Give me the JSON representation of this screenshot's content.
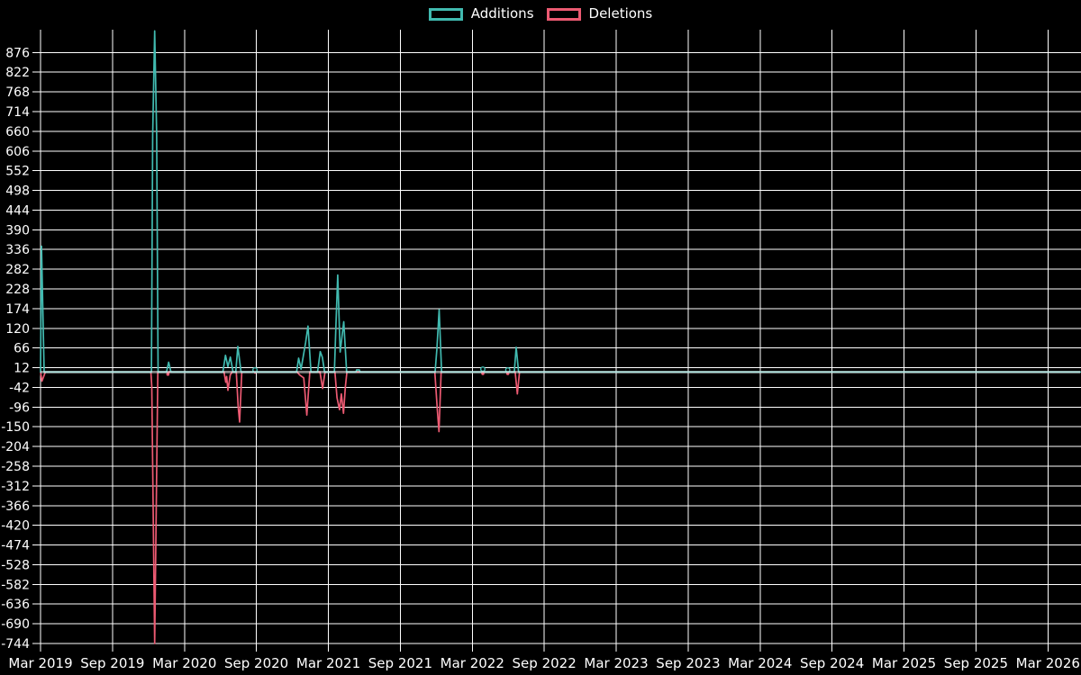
{
  "chart_data": {
    "type": "line",
    "title": "",
    "background": "#000000",
    "grid_color": "#ffffff",
    "zero_line_color": "rgba(255,255,255,0.52)",
    "legend_position": "top-center",
    "x_axis": {
      "unit": "months since 2019-03",
      "tick_step_months": 6,
      "range_months": [
        0,
        86.7
      ],
      "labels": [
        "Mar 2019",
        "Sep 2019",
        "Mar 2020",
        "Sep 2020",
        "Mar 2021",
        "Sep 2021",
        "Mar 2022",
        "Sep 2022",
        "Mar 2023",
        "Sep 2023",
        "Mar 2024",
        "Sep 2024",
        "Mar 2025",
        "Sep 2025",
        "Mar 2026"
      ]
    },
    "y_axis": {
      "min": -744,
      "max": 876,
      "step": 54,
      "ticks": [
        876,
        822,
        768,
        714,
        660,
        606,
        552,
        498,
        444,
        390,
        336,
        282,
        228,
        174,
        120,
        66,
        12,
        -42,
        -96,
        -150,
        -204,
        -258,
        -312,
        -366,
        -420,
        -474,
        -528,
        -582,
        -636,
        -690,
        -744
      ]
    },
    "series": [
      {
        "name": "Additions",
        "color": "#41bab0",
        "points": [
          [
            0,
            0
          ],
          [
            0.08,
            345
          ],
          [
            0.3,
            0
          ],
          [
            9.25,
            0
          ],
          [
            9.35,
            650
          ],
          [
            9.52,
            935
          ],
          [
            9.68,
            650
          ],
          [
            9.8,
            0
          ],
          [
            10.5,
            0
          ],
          [
            10.68,
            27
          ],
          [
            10.88,
            0
          ],
          [
            15.2,
            0
          ],
          [
            15.42,
            46
          ],
          [
            15.62,
            15
          ],
          [
            15.83,
            41
          ],
          [
            16.05,
            0
          ],
          [
            16.28,
            0
          ],
          [
            16.45,
            70
          ],
          [
            16.72,
            0
          ],
          [
            17.8,
            0
          ],
          [
            17.88,
            6
          ],
          [
            17.96,
            0
          ],
          [
            21.35,
            0
          ],
          [
            21.52,
            38
          ],
          [
            21.72,
            8
          ],
          [
            22.1,
            80
          ],
          [
            22.3,
            126
          ],
          [
            22.55,
            0
          ],
          [
            23.1,
            0
          ],
          [
            23.32,
            56
          ],
          [
            23.5,
            40
          ],
          [
            23.68,
            0
          ],
          [
            24.5,
            0
          ],
          [
            24.62,
            120
          ],
          [
            24.78,
            266
          ],
          [
            24.98,
            55
          ],
          [
            25.28,
            138
          ],
          [
            25.52,
            0
          ],
          [
            26.3,
            0
          ],
          [
            26.36,
            6
          ],
          [
            26.58,
            6
          ],
          [
            26.64,
            0
          ],
          [
            32.9,
            0
          ],
          [
            33.05,
            64
          ],
          [
            33.24,
            171
          ],
          [
            33.44,
            0
          ],
          [
            36.8,
            0
          ],
          [
            36.88,
            8
          ],
          [
            36.96,
            0
          ],
          [
            38.88,
            0
          ],
          [
            38.96,
            6
          ],
          [
            39.04,
            0
          ],
          [
            39.5,
            0
          ],
          [
            39.66,
            68
          ],
          [
            39.86,
            0
          ],
          [
            86.7,
            0
          ]
        ],
        "markers": [
          [
            17.88,
            6
          ],
          [
            36.88,
            8
          ],
          [
            38.96,
            6
          ]
        ]
      },
      {
        "name": "Deletions",
        "color": "#ec5a72",
        "points": [
          [
            0,
            0
          ],
          [
            0.12,
            -25
          ],
          [
            0.4,
            0
          ],
          [
            9.2,
            0
          ],
          [
            9.28,
            -40
          ],
          [
            9.52,
            -744
          ],
          [
            9.78,
            0
          ],
          [
            10.55,
            0
          ],
          [
            10.62,
            -6
          ],
          [
            10.72,
            0
          ],
          [
            15.3,
            0
          ],
          [
            15.44,
            -28
          ],
          [
            15.52,
            -12
          ],
          [
            15.62,
            -50
          ],
          [
            15.82,
            -8
          ],
          [
            15.98,
            0
          ],
          [
            16.32,
            0
          ],
          [
            16.48,
            -95
          ],
          [
            16.6,
            -137
          ],
          [
            16.78,
            0
          ],
          [
            17.84,
            0
          ],
          [
            17.88,
            -3
          ],
          [
            17.94,
            0
          ],
          [
            21.4,
            0
          ],
          [
            21.6,
            -8
          ],
          [
            21.95,
            -16
          ],
          [
            22.2,
            -118
          ],
          [
            22.45,
            0
          ],
          [
            23.3,
            0
          ],
          [
            23.52,
            -45
          ],
          [
            23.72,
            0
          ],
          [
            24.55,
            0
          ],
          [
            24.72,
            -70
          ],
          [
            24.93,
            -103
          ],
          [
            25.08,
            -60
          ],
          [
            25.26,
            -113
          ],
          [
            25.42,
            -40
          ],
          [
            25.55,
            0
          ],
          [
            32.88,
            0
          ],
          [
            33.08,
            -101
          ],
          [
            33.22,
            -163
          ],
          [
            33.4,
            0
          ],
          [
            36.8,
            0
          ],
          [
            36.88,
            -4
          ],
          [
            36.96,
            0
          ],
          [
            38.88,
            0
          ],
          [
            38.96,
            -4
          ],
          [
            39.04,
            0
          ],
          [
            39.58,
            0
          ],
          [
            39.76,
            -60
          ],
          [
            39.94,
            0
          ],
          [
            86.7,
            0
          ]
        ],
        "markers": [
          [
            10.62,
            -6
          ],
          [
            36.88,
            -4
          ],
          [
            38.96,
            -4
          ]
        ]
      }
    ]
  }
}
